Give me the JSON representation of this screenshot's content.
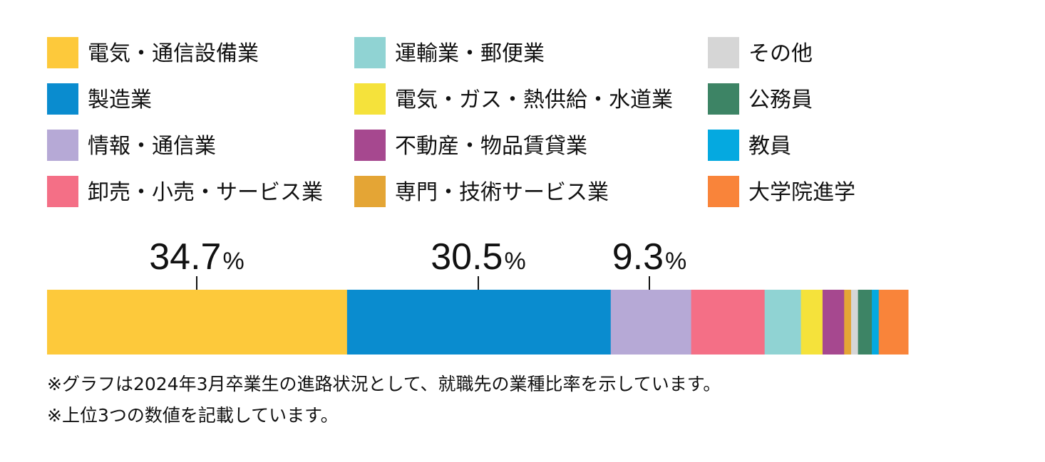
{
  "chart_data": {
    "type": "bar",
    "orientation": "horizontal-stacked-100",
    "legend_placement": "top",
    "categories": [
      "電気・通信設備業",
      "製造業",
      "情報・通信業",
      "卸売・小売・サービス業",
      "運輸業・郵便業",
      "電気・ガス・熱供給・水道業",
      "不動産・物品賃貸業",
      "専門・技術サービス業",
      "その他",
      "公務員",
      "教員",
      "大学院進学"
    ],
    "values": [
      34.7,
      30.5,
      9.3,
      8.5,
      4.2,
      2.5,
      2.5,
      0.8,
      0.8,
      1.6,
      0.8,
      3.4
    ],
    "colors": [
      "#fdc93b",
      "#0a8ccf",
      "#b6a9d6",
      "#f46f86",
      "#90d3d3",
      "#f5e23b",
      "#a6488f",
      "#e4a535",
      "#d6d6d6",
      "#3d8465",
      "#05a9e0",
      "#f9843a"
    ],
    "data_labels": [
      {
        "index": 0,
        "value": "34.7",
        "unit": "%"
      },
      {
        "index": 1,
        "value": "30.5",
        "unit": "%"
      },
      {
        "index": 2,
        "value": "9.3",
        "unit": "%"
      }
    ]
  },
  "notes": [
    "※グラフは2024年3月卒業生の進路状況として、就職先の業種比率を示しています。",
    "※上位3つの数値を記載しています。"
  ]
}
